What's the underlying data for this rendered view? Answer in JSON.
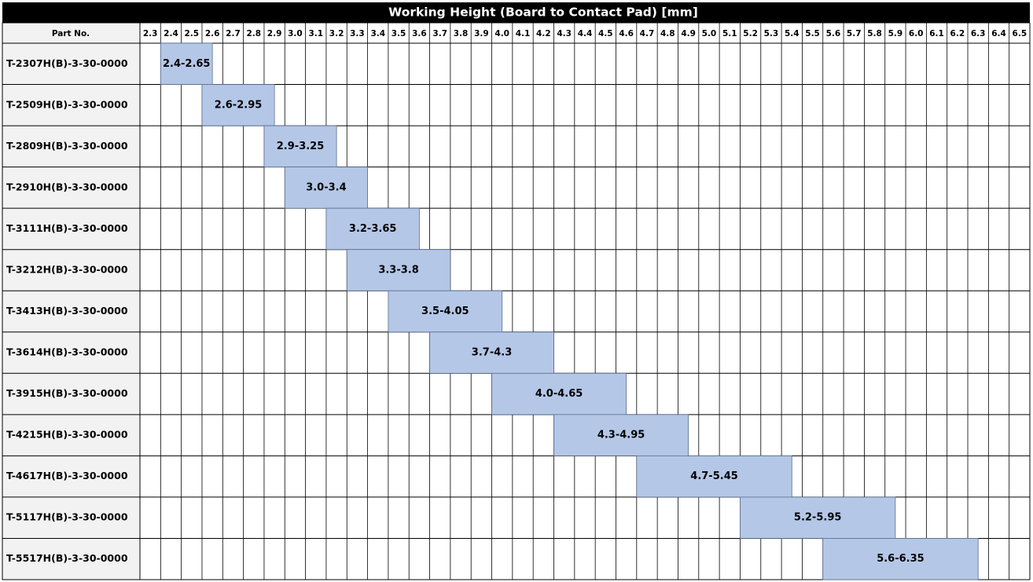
{
  "chart_data": {
    "type": "range",
    "title": "Working Height (Board to Contact Pad) [mm]",
    "category_label": "Part No.",
    "categories": [
      "T-2307H(B)-3-30-0000",
      "T-2509H(B)-3-30-0000",
      "T-2809H(B)-3-30-0000",
      "T-2910H(B)-3-30-0000",
      "T-3111H(B)-3-30-0000",
      "T-3212H(B)-3-30-0000",
      "T-3413H(B)-3-30-0000",
      "T-3614H(B)-3-30-0000",
      "T-3915H(B)-3-30-0000",
      "T-4215H(B)-3-30-0000",
      "T-4617H(B)-3-30-0000",
      "T-5117H(B)-3-30-0000",
      "T-5517H(B)-3-30-0000"
    ],
    "low": [
      2.4,
      2.6,
      2.9,
      3.0,
      3.2,
      3.3,
      3.5,
      3.7,
      4.0,
      4.3,
      4.7,
      5.2,
      5.6
    ],
    "high": [
      2.65,
      2.95,
      3.25,
      3.4,
      3.65,
      3.8,
      4.05,
      4.3,
      4.65,
      4.95,
      5.45,
      5.95,
      6.35
    ],
    "value_labels": [
      "2.4-2.65",
      "2.6-2.95",
      "2.9-3.25",
      "3.0-3.4",
      "3.2-3.65",
      "3.3-3.8",
      "3.5-4.05",
      "3.7-4.3",
      "4.0-4.65",
      "4.3-4.95",
      "4.7-5.45",
      "5.2-5.95",
      "5.6-6.35"
    ],
    "color": "#b4c7e7",
    "xlim": [
      2.3,
      6.6
    ],
    "xticks": [
      2.3,
      2.4,
      2.5,
      2.6,
      2.7,
      2.8,
      2.9,
      {
        "value": 3,
        "label": "3.0"
      },
      3.1,
      3.2,
      3.3,
      3.4,
      3.5,
      3.6,
      3.7,
      3.8,
      3.9,
      {
        "value": 4,
        "label": "4.0"
      },
      4.1,
      4.2,
      4.3,
      4.4,
      4.5,
      4.6,
      4.7,
      4.8,
      4.9,
      {
        "value": 5,
        "label": "5.0"
      },
      5.1,
      5.2,
      5.3,
      5.4,
      5.5,
      5.6,
      5.7,
      5.8,
      5.9,
      {
        "value": 6,
        "label": "6.0"
      },
      6.1,
      6.2,
      6.3,
      6.4,
      6.5
    ]
  }
}
